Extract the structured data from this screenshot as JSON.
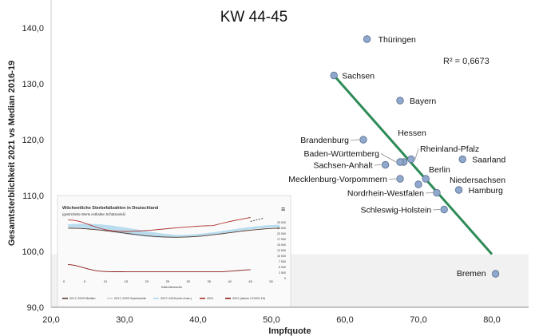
{
  "chart_data": {
    "type": "scatter",
    "title": "KW 44-45",
    "xlabel": "Impfquote",
    "ylabel": "Gesamtsterblichkeit 2021 vs Median 2016-19",
    "xlim": [
      20,
      85
    ],
    "ylim": [
      90,
      145
    ],
    "x_ticks": [
      "20,0",
      "30,0",
      "40,0",
      "50,0",
      "60,0",
      "70,0",
      "80,0"
    ],
    "y_ticks": [
      "90,0",
      "100,0",
      "110,0",
      "120,0",
      "130,0",
      "140,0"
    ],
    "grid": false,
    "annotation": "R² = 0,6673",
    "points": [
      {
        "label": "Thüringen",
        "x": 63.0,
        "y": 138.0
      },
      {
        "label": "Sachsen",
        "x": 58.5,
        "y": 131.5
      },
      {
        "label": "Bayern",
        "x": 67.5,
        "y": 127.0
      },
      {
        "label": "Brandenburg",
        "x": 62.5,
        "y": 120.0
      },
      {
        "label": "Hessen",
        "x": 68.0,
        "y": 116.0
      },
      {
        "label": "Baden-Württemberg",
        "x": 67.5,
        "y": 116.0
      },
      {
        "label": "Rheinland-Pfalz",
        "x": 69.0,
        "y": 116.5
      },
      {
        "label": "Saarland",
        "x": 76.0,
        "y": 116.5
      },
      {
        "label": "Sachsen-Anhalt",
        "x": 65.5,
        "y": 115.5
      },
      {
        "label": "Berlin",
        "x": 71.0,
        "y": 113.0
      },
      {
        "label": "Mecklenburg-Vorpommern",
        "x": 67.5,
        "y": 113.0
      },
      {
        "label": "Niedersachsen",
        "x": 70.0,
        "y": 112.0
      },
      {
        "label": "Nordrhein-Westfalen",
        "x": 72.5,
        "y": 110.5
      },
      {
        "label": "Hamburg",
        "x": 75.5,
        "y": 111.0
      },
      {
        "label": "Schleswig-Holstein",
        "x": 73.5,
        "y": 107.5
      },
      {
        "label": "Bremen",
        "x": 80.5,
        "y": 96.0
      }
    ],
    "trendline": {
      "color": "#2e8b57",
      "from": {
        "x": 58.5,
        "y": 131.5
      },
      "to": {
        "x": 80.0,
        "y": 99.5
      }
    },
    "point_color": "#8fa8cc"
  },
  "inset": {
    "title": "Wöchentliche Sterbefallzahlen in Deutschland",
    "subtitle": "(gestrichelte Werte enthalten Schätzanteil)",
    "menu_icon": "≡",
    "x_label": "Kalenderwoche",
    "x_ticks": [
      "0",
      "5",
      "10",
      "15",
      "20",
      "25",
      "30",
      "35",
      "40",
      "45",
      "50"
    ],
    "y_ticks_right": [
      "25 000",
      "22 500",
      "20 000",
      "17 500",
      "15 000",
      "12 500",
      "10 000",
      "7 500",
      "5 000",
      "2 500",
      "0"
    ],
    "legend": [
      "2017–2020 Median",
      "2017–2020 Spannweite",
      "2017–2018 (min./max.)",
      "2021",
      "2021 (davon COVID-19)"
    ],
    "colors": {
      "median": "#5a3a2a",
      "band": "#a9d6ec",
      "line2021": "#b03030",
      "covid": "#8b1a1a"
    }
  }
}
